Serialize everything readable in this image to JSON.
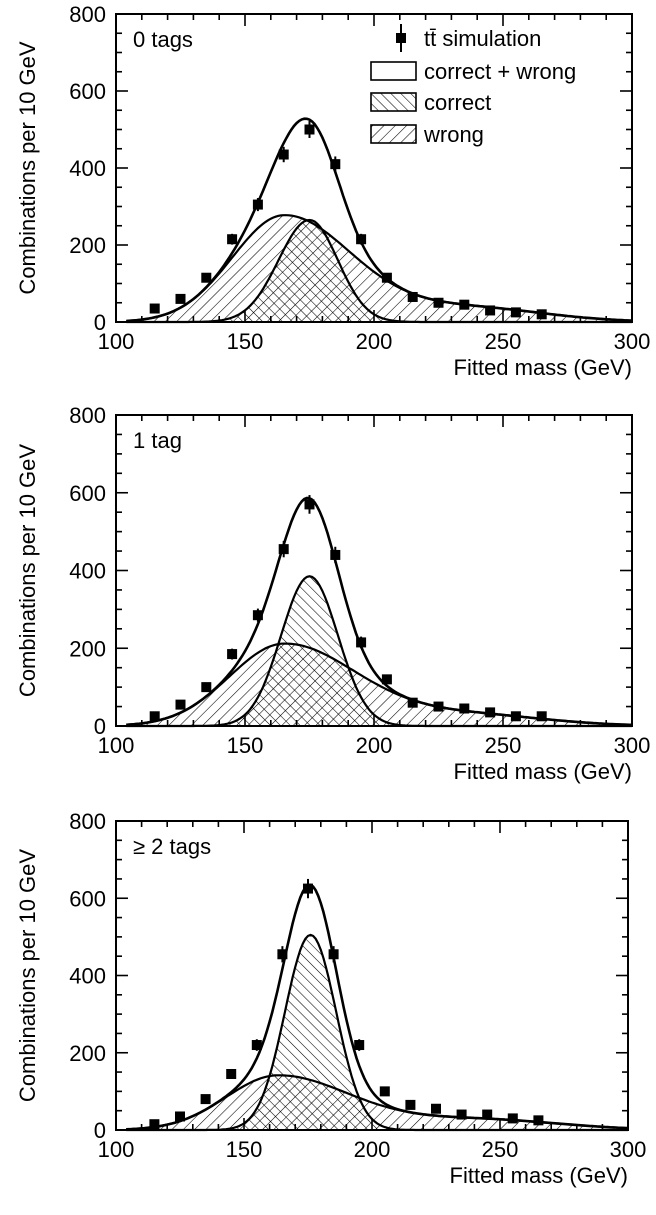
{
  "chart_data": [
    {
      "type": "line",
      "panel_label": "0 tags",
      "xlabel": "Fitted mass (GeV)",
      "ylabel": "Combinations per 10 GeV",
      "xlim": [
        100,
        300
      ],
      "ylim": [
        0,
        800
      ],
      "xticks": [
        100,
        150,
        200,
        250,
        300
      ],
      "yticks": [
        0,
        200,
        400,
        600,
        800
      ],
      "legend": {
        "placement": "top-right",
        "entries": [
          "tt̄ simulation",
          "correct + wrong",
          "correct",
          "wrong"
        ]
      },
      "points": {
        "x": [
          115,
          125,
          135,
          145,
          155,
          165,
          175,
          185,
          195,
          205,
          215,
          225,
          235,
          245,
          255,
          265
        ],
        "y": [
          35,
          60,
          115,
          215,
          305,
          435,
          500,
          410,
          215,
          115,
          65,
          50,
          45,
          30,
          25,
          20
        ],
        "yerr": [
          6,
          8,
          10,
          14,
          17,
          20,
          22,
          20,
          14,
          10,
          8,
          7,
          7,
          5,
          5,
          4
        ]
      },
      "components": {
        "correct": {
          "peak": 265,
          "mean": 175,
          "sigma_left": 12,
          "sigma_right": 11
        },
        "wrong": {
          "peak": 275,
          "mean": 165,
          "sigma_left": 20,
          "sigma_right": 26,
          "tail_amp": 38,
          "tail_mean": 235,
          "tail_sigma": 30
        }
      }
    },
    {
      "type": "line",
      "panel_label": "1 tag",
      "xlabel": "Fitted mass (GeV)",
      "ylabel": "Combinations per 10 GeV",
      "xlim": [
        100,
        300
      ],
      "ylim": [
        0,
        800
      ],
      "xticks": [
        100,
        150,
        200,
        250,
        300
      ],
      "yticks": [
        0,
        200,
        400,
        600,
        800
      ],
      "points": {
        "x": [
          115,
          125,
          135,
          145,
          155,
          165,
          175,
          185,
          195,
          205,
          215,
          225,
          235,
          245,
          255,
          265
        ],
        "y": [
          25,
          55,
          100,
          185,
          285,
          455,
          570,
          440,
          215,
          120,
          60,
          50,
          45,
          35,
          25,
          25
        ],
        "yerr": [
          5,
          7,
          10,
          14,
          17,
          21,
          24,
          21,
          15,
          11,
          8,
          7,
          7,
          6,
          5,
          5
        ]
      },
      "components": {
        "correct": {
          "peak": 385,
          "mean": 175,
          "sigma_left": 11,
          "sigma_right": 11
        },
        "wrong": {
          "peak": 210,
          "mean": 165,
          "sigma_left": 21,
          "sigma_right": 28,
          "tail_amp": 30,
          "tail_mean": 235,
          "tail_sigma": 30
        }
      }
    },
    {
      "type": "line",
      "panel_label": "≥ 2 tags",
      "xlabel": "Fitted mass (GeV)",
      "ylabel": "Combinations per 10 GeV",
      "xlim": [
        100,
        300
      ],
      "ylim": [
        0,
        800
      ],
      "xticks": [
        100,
        150,
        200,
        250,
        300
      ],
      "yticks": [
        0,
        200,
        400,
        600,
        800
      ],
      "points": {
        "x": [
          115,
          125,
          135,
          145,
          155,
          165,
          175,
          185,
          195,
          205,
          215,
          225,
          235,
          245,
          255,
          265
        ],
        "y": [
          15,
          35,
          80,
          145,
          220,
          455,
          625,
          455,
          220,
          100,
          65,
          55,
          40,
          40,
          30,
          25
        ],
        "yerr": [
          4,
          6,
          9,
          12,
          15,
          21,
          25,
          21,
          15,
          10,
          8,
          7,
          6,
          6,
          5,
          5
        ]
      },
      "components": {
        "correct": {
          "peak": 505,
          "mean": 176,
          "sigma_left": 10,
          "sigma_right": 10
        },
        "wrong": {
          "peak": 140,
          "mean": 163,
          "sigma_left": 20,
          "sigma_right": 28,
          "tail_amp": 28,
          "tail_mean": 240,
          "tail_sigma": 32
        }
      }
    }
  ]
}
